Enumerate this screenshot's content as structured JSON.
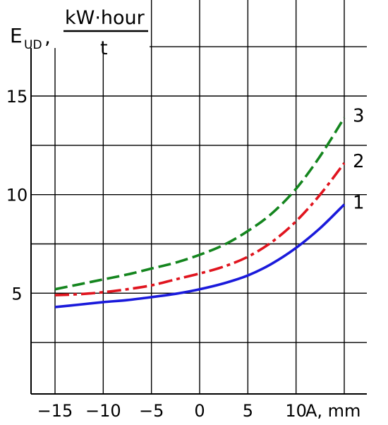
{
  "chart_data": {
    "type": "line",
    "ylabel_prefix": "E",
    "ylabel_sub": "UD",
    "ylabel_comma": ",",
    "yunit_numerator": "kW·hour",
    "yunit_denominator": "t",
    "xlabel": "A, mm",
    "xlim": [
      -15,
      15.8
    ],
    "ylim": [
      0,
      17.8
    ],
    "xticks": [
      -15,
      -10,
      -5,
      0,
      5,
      10
    ],
    "xtick_labels": [
      "−15",
      "−10",
      "−5",
      "0",
      "5",
      "10"
    ],
    "yticks": [
      5,
      10,
      15
    ],
    "ytick_labels": [
      "5",
      "10",
      "15"
    ],
    "grid": true,
    "series": [
      {
        "name": "1",
        "color": "#1a1adb",
        "style": "solid",
        "x": [
          -15,
          -12.5,
          -10,
          -7.5,
          -5,
          -2.5,
          0,
          2.5,
          5,
          7.5,
          10,
          12.5,
          15
        ],
        "y": [
          4.3,
          4.42,
          4.55,
          4.65,
          4.8,
          4.97,
          5.2,
          5.5,
          5.9,
          6.5,
          7.3,
          8.3,
          9.5
        ]
      },
      {
        "name": "2",
        "color": "#e0141e",
        "style": "dashdot",
        "x": [
          -15,
          -12.5,
          -10,
          -7.5,
          -5,
          -2.5,
          0,
          2.5,
          5,
          7.5,
          10,
          12.5,
          15
        ],
        "y": [
          4.9,
          4.95,
          5.05,
          5.2,
          5.4,
          5.7,
          6.0,
          6.35,
          6.85,
          7.6,
          8.65,
          10.0,
          11.6
        ]
      },
      {
        "name": "3",
        "color": "#14851e",
        "style": "dashed",
        "x": [
          -15,
          -12.5,
          -10,
          -7.5,
          -5,
          -2.5,
          0,
          2.5,
          5,
          7.5,
          10,
          12.5,
          15
        ],
        "y": [
          5.2,
          5.45,
          5.7,
          5.95,
          6.25,
          6.55,
          6.95,
          7.45,
          8.15,
          9.05,
          10.3,
          11.95,
          13.9
        ]
      }
    ]
  }
}
